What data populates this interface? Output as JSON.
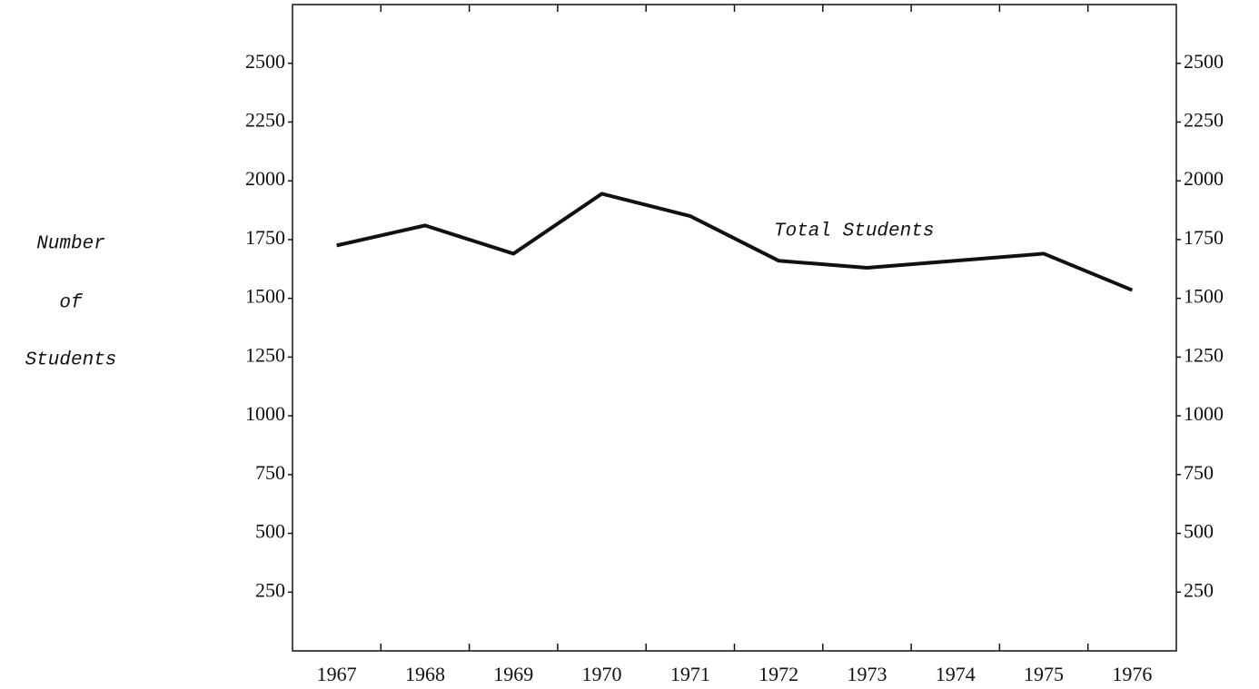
{
  "chart_data": {
    "type": "line",
    "ylabel": [
      "Number",
      "of",
      "Students"
    ],
    "categories": [
      "1967",
      "1968",
      "1969",
      "1970",
      "1971",
      "1972",
      "1973",
      "1974",
      "1975",
      "1976"
    ],
    "series": [
      {
        "name": "Total Students",
        "color": "#111111",
        "values": [
          1725,
          1810,
          1690,
          1945,
          1850,
          1660,
          1630,
          1660,
          1690,
          1535
        ]
      }
    ],
    "ylim": [
      0,
      2750
    ],
    "yticks": [
      250,
      500,
      750,
      1000,
      1250,
      1500,
      1750,
      2000,
      2250,
      2500
    ],
    "grid": false
  }
}
